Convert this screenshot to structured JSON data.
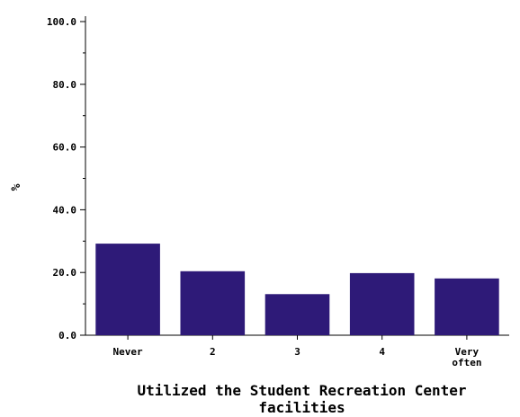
{
  "chart_data": {
    "type": "bar",
    "categories": [
      "Never",
      "2",
      "3",
      "4",
      "Very often"
    ],
    "category_lines": [
      [
        "Never"
      ],
      [
        "2"
      ],
      [
        "3"
      ],
      [
        "4"
      ],
      [
        "Very",
        "often"
      ]
    ],
    "values": [
      29.2,
      20.4,
      13.1,
      19.8,
      18.1
    ],
    "xlabel": "Utilized the Student Recreation Center facilities",
    "xlabel_lines": [
      "Utilized the Student Recreation Center",
      "facilities"
    ],
    "ylabel": "%",
    "ylim": [
      0,
      100
    ],
    "yticks": [
      0,
      20,
      40,
      60,
      80,
      100
    ],
    "ytick_labels": [
      "0.0",
      "20.0",
      "40.0",
      "60.0",
      "80.0",
      "100.0"
    ],
    "bar_color": "#2e1a78",
    "grid": false
  }
}
